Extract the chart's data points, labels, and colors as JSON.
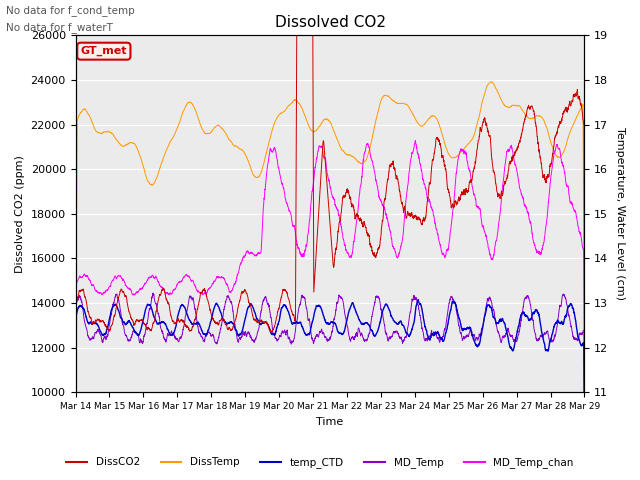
{
  "title": "Dissolved CO2",
  "subtitle_line1": "No data for f_cond_temp",
  "subtitle_line2": "No data for f_waterT",
  "xlabel": "Time",
  "ylabel_left": "Dissolved CO2 (ppm)",
  "ylabel_right": "Temperature, Water Level (cm)",
  "ylim_left": [
    10000,
    26000
  ],
  "ylim_right": [
    11.0,
    19.0
  ],
  "yticks_left": [
    10000,
    12000,
    14000,
    16000,
    18000,
    20000,
    22000,
    24000,
    26000
  ],
  "yticks_right": [
    11.0,
    12.0,
    13.0,
    14.0,
    15.0,
    16.0,
    17.0,
    18.0,
    19.0
  ],
  "xtick_labels": [
    "Mar 14",
    "Mar 15",
    "Mar 16",
    "Mar 17",
    "Mar 18",
    "Mar 19",
    "Mar 20",
    "Mar 21",
    "Mar 22",
    "Mar 23",
    "Mar 24",
    "Mar 25",
    "Mar 26",
    "Mar 27",
    "Mar 28",
    "Mar 29"
  ],
  "colors": {
    "DissCO2": "#cc0000",
    "DissTemp": "#ff9900",
    "temp_CTD": "#0000cc",
    "MD_Temp": "#8800cc",
    "MD_Temp_chan": "#ff00ff"
  },
  "legend_label": "GT_met",
  "legend_box_facecolor": "#ffeeee",
  "legend_box_edgecolor": "#cc0000",
  "background_color": "#ebebeb"
}
